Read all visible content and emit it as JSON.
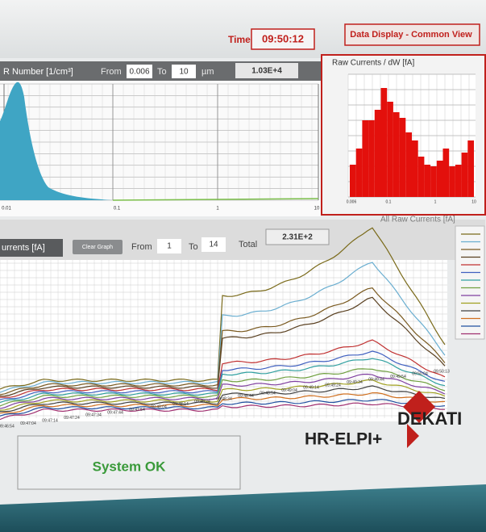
{
  "header": {
    "time_label": "Time",
    "time": "09:50:12",
    "view": "Data Display - Common View"
  },
  "number_panel": {
    "title": "R Number [1/cm³]",
    "from_label": "From",
    "from": "0.006",
    "to_label": "To",
    "to": "10",
    "unit": "µm",
    "total": "1.03E+4",
    "x_labels": [
      "0.01",
      "0.1",
      "1",
      "10"
    ]
  },
  "raw_panel": {
    "title": "Raw Currents / dW [fA]",
    "x_labels": [
      "0.006",
      "0.1",
      "1",
      "10"
    ]
  },
  "currents_panel": {
    "selector": "urrents [fA]",
    "clear_button": "Clear Graph",
    "from_label": "From",
    "from": "1",
    "to_label": "To",
    "to": "14",
    "total_label": "Total",
    "total": "2.31E+2",
    "title": "All Raw Currents [fA]",
    "x_labels": [
      "09:46:54",
      "09:47:04",
      "09:47:14",
      "09:47:24",
      "09:47:34",
      "09:47:44",
      "09:47:54",
      "09:48:04",
      "09:48:14",
      "09:48:24",
      "09:48:34",
      "09:48:44",
      "09:48:54",
      "09:49:04",
      "09:49:14",
      "09:49:24",
      "09:49:34",
      "09:49:44",
      "09:49:54",
      "09:50:04",
      "09:50:13"
    ]
  },
  "status": "System OK",
  "brand": {
    "product": "HR-ELPI+",
    "company": "DEKATI"
  }
}
